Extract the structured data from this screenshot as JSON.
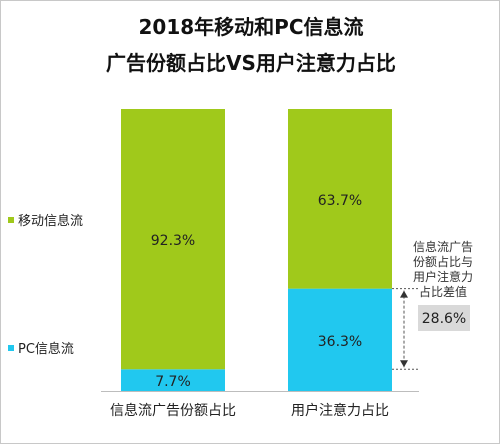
{
  "chart_data": {
    "type": "bar",
    "stacked": true,
    "percent": true,
    "title": "2018年移动和PC信息流",
    "subtitle": "广告份额占比VS用户注意力占比",
    "categories": [
      "信息流广告份额占比",
      "用户注意力占比"
    ],
    "series": [
      {
        "name": "PC信息流",
        "values": [
          7.7,
          36.3
        ],
        "labels": [
          "7.7%",
          "36.3%"
        ],
        "color": "#21c8ef"
      },
      {
        "name": "移动信息流",
        "values": [
          92.3,
          63.7
        ],
        "labels": [
          "92.3%",
          "63.7%"
        ],
        "color": "#a0c91b"
      }
    ],
    "ylim": [
      0,
      100
    ],
    "legend_position": "left",
    "annotation": {
      "lines": [
        "信息流广告",
        "份额占比与",
        "用户注意力",
        "占比差值"
      ],
      "value": "28.6%"
    }
  }
}
